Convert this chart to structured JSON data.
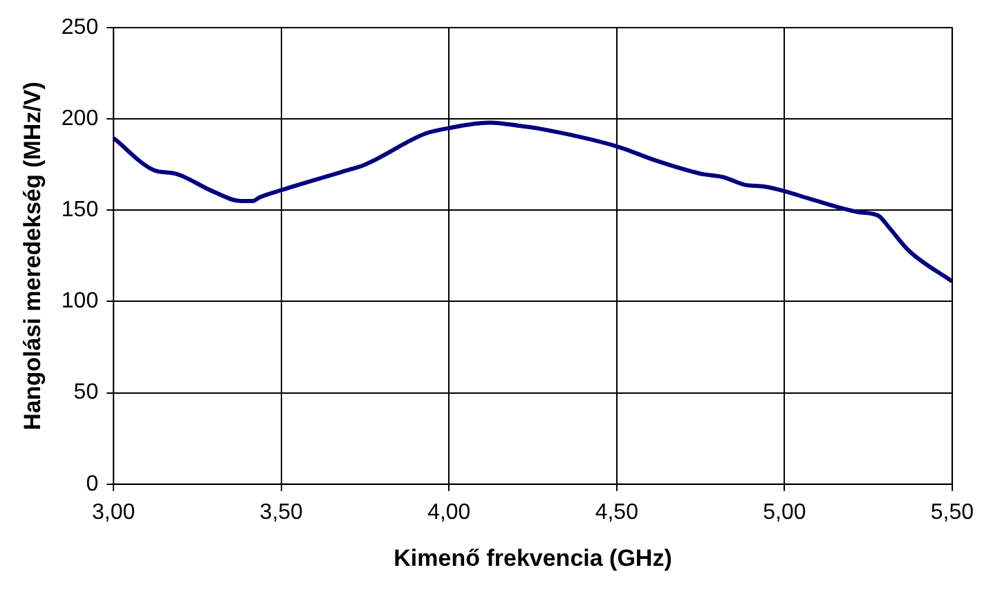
{
  "chart_data": {
    "type": "line",
    "xlabel": "Kimenő frekvencia (GHz)",
    "ylabel": "Hangolási meredekség (MHz/V)",
    "x": [
      3.0,
      3.12,
      3.185,
      3.3,
      3.38,
      3.415,
      3.435,
      3.5,
      3.68,
      3.75,
      3.93,
      4.0,
      4.12,
      4.22,
      4.26,
      4.5,
      4.62,
      4.75,
      4.82,
      4.88,
      4.94,
      5.0,
      5.08,
      5.22,
      5.28,
      5.31,
      5.37,
      5.5
    ],
    "series": [
      {
        "color": "#000080",
        "values": [
          189.5,
          172,
          170,
          160,
          155,
          155,
          157,
          161,
          171,
          175,
          192,
          195,
          198,
          196,
          195,
          185,
          177,
          170,
          168,
          164,
          163,
          160.5,
          156,
          149,
          147,
          141,
          128,
          111
        ]
      }
    ],
    "xlim": [
      3.0,
      5.5
    ],
    "xticks": [
      {
        "value": 3.0,
        "label": "3,00"
      },
      {
        "value": 3.5,
        "label": "3,50"
      },
      {
        "value": 4.0,
        "label": "4,00"
      },
      {
        "value": 4.5,
        "label": "4,50"
      },
      {
        "value": 5.0,
        "label": "5,00"
      },
      {
        "value": 5.5,
        "label": "5,50"
      }
    ],
    "ylim": [
      0,
      250
    ],
    "yticks": [
      0,
      50,
      100,
      150,
      200,
      250
    ],
    "grid": true,
    "marker": "none",
    "line_style": "solid"
  }
}
